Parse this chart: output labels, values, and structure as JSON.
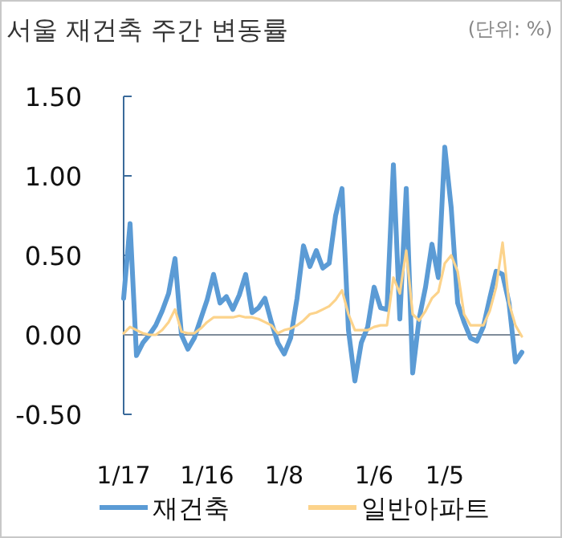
{
  "chart_data": {
    "type": "line",
    "title": "서울 재건축 주간 변동률",
    "annotations": [
      "(단위: %)"
    ],
    "categories": [
      "1/17",
      null,
      null,
      null,
      null,
      null,
      null,
      null,
      null,
      null,
      null,
      null,
      null,
      "1/16",
      null,
      null,
      null,
      null,
      null,
      null,
      null,
      null,
      null,
      null,
      null,
      "1/8",
      null,
      null,
      null,
      null,
      null,
      null,
      null,
      null,
      null,
      null,
      null,
      null,
      null,
      "1/6",
      null,
      null,
      null,
      null,
      null,
      null,
      null,
      null,
      null,
      null,
      "1/5",
      null,
      null,
      null,
      null,
      null,
      null,
      null,
      null,
      null,
      null,
      null,
      null
    ],
    "ylim": [
      -0.5,
      1.5
    ],
    "yticks": [
      {
        "value": -0.5,
        "label": "-0.50"
      },
      {
        "value": 0,
        "label": "0.00"
      },
      {
        "value": 0.5,
        "label": "0.50"
      },
      {
        "value": 1,
        "label": "1.00"
      },
      {
        "value": 1.5,
        "label": "1.50"
      }
    ],
    "grid": false,
    "ref_lines": [
      {
        "axis": "y",
        "value": 0,
        "color": "#7f8c9a"
      }
    ],
    "legend": "bottom",
    "marker": "none",
    "line_style": "solid",
    "series": [
      {
        "name": "재건축",
        "color": "#5b9bd5",
        "values": [
          0.23,
          0.7,
          -0.13,
          -0.05,
          0,
          0.06,
          0.15,
          0.26,
          0.48,
          0,
          -0.09,
          -0.02,
          0.1,
          0.22,
          0.38,
          0.2,
          0.24,
          0.16,
          0.25,
          0.38,
          0.14,
          0.17,
          0.23,
          0.08,
          -0.05,
          -0.12,
          -0.02,
          0.23,
          0.56,
          0.43,
          0.53,
          0.42,
          0.45,
          0.75,
          0.92,
          0.03,
          -0.29,
          -0.05,
          0.05,
          0.3,
          0.17,
          0.16,
          1.07,
          0.1,
          0.92,
          -0.24,
          0.1,
          0.3,
          0.57,
          0.36,
          1.18,
          0.8,
          0.2,
          0.08,
          -0.02,
          -0.04,
          0.05,
          0.23,
          0.4,
          0.38,
          0.2,
          -0.17,
          -0.11
        ]
      },
      {
        "name": "일반아파트",
        "color": "#fcd38b",
        "values": [
          0.01,
          0.05,
          0.03,
          0.01,
          0,
          0,
          0.03,
          0.08,
          0.16,
          0.02,
          0.01,
          0.01,
          0.04,
          0.08,
          0.11,
          0.11,
          0.11,
          0.11,
          0.12,
          0.11,
          0.11,
          0.1,
          0.08,
          0.06,
          0.01,
          0.03,
          0.04,
          0.06,
          0.09,
          0.13,
          0.14,
          0.16,
          0.18,
          0.22,
          0.28,
          0.13,
          0.03,
          0.03,
          0.03,
          0.05,
          0.06,
          0.06,
          0.36,
          0.26,
          0.53,
          0.13,
          0.09,
          0.15,
          0.23,
          0.27,
          0.45,
          0.5,
          0.4,
          0.13,
          0.06,
          0.06,
          0.06,
          0.15,
          0.3,
          0.58,
          0.2,
          0.06,
          -0.01
        ]
      }
    ]
  }
}
